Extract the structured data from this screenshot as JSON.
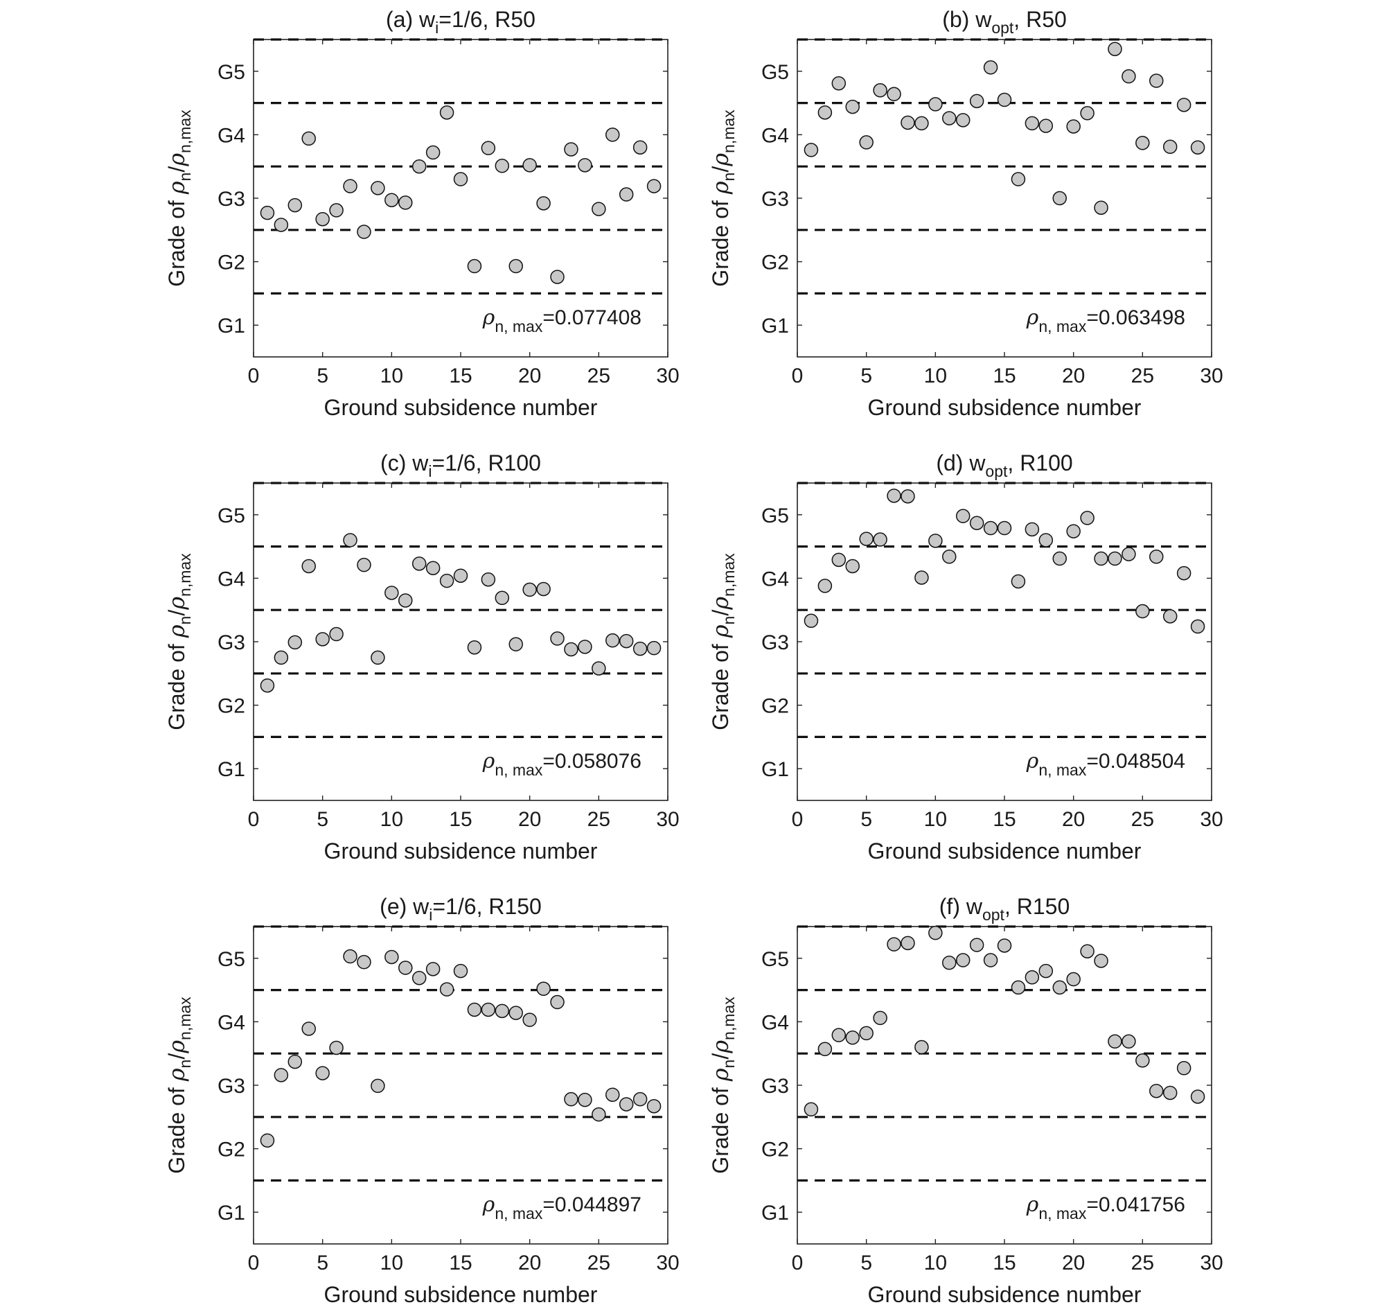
{
  "chart_data": [
    {
      "type": "scatter",
      "panel": "a",
      "title": {
        "prefix": "(a) w",
        "sub": "i",
        "suffix": "=1/6, R50"
      },
      "xlabel": "Ground subsidence number",
      "ylabel": {
        "pre": "Grade of ",
        "rho": "ρ",
        "sub1": "n",
        "slash": "/",
        "sub2": "n,max"
      },
      "xlim": [
        0,
        30
      ],
      "ylim": [
        0.5,
        5.5
      ],
      "xticks": [
        0,
        5,
        10,
        15,
        20,
        25,
        30
      ],
      "yticks": [
        1,
        2,
        3,
        4,
        5
      ],
      "ytick_labels": [
        "G1",
        "G2",
        "G3",
        "G4",
        "G5"
      ],
      "grade_boundaries": [
        1.5,
        2.5,
        3.5,
        4.5,
        5.5
      ],
      "annotation": {
        "rho": "ρ",
        "sub": "n, max",
        "value": "=0.077408"
      },
      "x": [
        1,
        2,
        3,
        4,
        5,
        6,
        7,
        8,
        9,
        10,
        11,
        12,
        13,
        14,
        15,
        16,
        17,
        18,
        19,
        20,
        21,
        22,
        23,
        24,
        25,
        26,
        27,
        28,
        29
      ],
      "y": [
        2.77,
        2.58,
        2.89,
        3.94,
        2.67,
        2.81,
        3.19,
        2.47,
        3.16,
        2.97,
        2.93,
        3.5,
        3.72,
        4.35,
        3.3,
        1.93,
        3.79,
        3.51,
        1.93,
        3.52,
        2.92,
        1.76,
        3.77,
        3.52,
        2.83,
        4.0,
        3.06,
        3.8,
        3.19
      ]
    },
    {
      "type": "scatter",
      "panel": "b",
      "title": {
        "prefix": "(b) w",
        "sub": "opt",
        "suffix": ", R50"
      },
      "xlabel": "Ground subsidence number",
      "ylabel": {
        "pre": "Grade of ",
        "rho": "ρ",
        "sub1": "n",
        "slash": "/",
        "sub2": "n,max"
      },
      "xlim": [
        0,
        30
      ],
      "ylim": [
        0.5,
        5.5
      ],
      "xticks": [
        0,
        5,
        10,
        15,
        20,
        25,
        30
      ],
      "yticks": [
        1,
        2,
        3,
        4,
        5
      ],
      "ytick_labels": [
        "G1",
        "G2",
        "G3",
        "G4",
        "G5"
      ],
      "grade_boundaries": [
        1.5,
        2.5,
        3.5,
        4.5,
        5.5
      ],
      "annotation": {
        "rho": "ρ",
        "sub": "n, max",
        "value": "=0.063498"
      },
      "x": [
        1,
        2,
        3,
        4,
        5,
        6,
        7,
        8,
        9,
        10,
        11,
        12,
        13,
        14,
        15,
        16,
        17,
        18,
        19,
        20,
        21,
        22,
        23,
        24,
        25,
        26,
        27,
        28,
        29
      ],
      "y": [
        3.76,
        4.35,
        4.81,
        4.44,
        3.88,
        4.7,
        4.64,
        4.19,
        4.18,
        4.48,
        4.26,
        4.23,
        4.53,
        5.06,
        4.55,
        3.3,
        4.18,
        4.14,
        3.0,
        4.13,
        4.34,
        2.85,
        5.35,
        4.92,
        3.87,
        4.85,
        3.81,
        4.47,
        3.8
      ]
    },
    {
      "type": "scatter",
      "panel": "c",
      "title": {
        "prefix": "(c) w",
        "sub": "i",
        "suffix": "=1/6, R100"
      },
      "xlabel": "Ground subsidence number",
      "ylabel": {
        "pre": "Grade of ",
        "rho": "ρ",
        "sub1": "n",
        "slash": "/",
        "sub2": "n,max"
      },
      "xlim": [
        0,
        30
      ],
      "ylim": [
        0.5,
        5.5
      ],
      "xticks": [
        0,
        5,
        10,
        15,
        20,
        25,
        30
      ],
      "yticks": [
        1,
        2,
        3,
        4,
        5
      ],
      "ytick_labels": [
        "G1",
        "G2",
        "G3",
        "G4",
        "G5"
      ],
      "grade_boundaries": [
        1.5,
        2.5,
        3.5,
        4.5,
        5.5
      ],
      "annotation": {
        "rho": "ρ",
        "sub": "n, max",
        "value": "=0.058076"
      },
      "x": [
        1,
        2,
        3,
        4,
        5,
        6,
        7,
        8,
        9,
        10,
        11,
        12,
        13,
        14,
        15,
        16,
        17,
        18,
        19,
        20,
        21,
        22,
        23,
        24,
        25,
        26,
        27,
        28,
        29
      ],
      "y": [
        2.31,
        2.75,
        2.99,
        4.19,
        3.04,
        3.12,
        4.6,
        4.21,
        2.75,
        3.77,
        3.65,
        4.23,
        4.16,
        3.96,
        4.04,
        2.91,
        3.98,
        3.69,
        2.96,
        3.82,
        3.83,
        3.05,
        2.88,
        2.92,
        2.58,
        3.02,
        3.01,
        2.89,
        2.9
      ]
    },
    {
      "type": "scatter",
      "panel": "d",
      "title": {
        "prefix": "(d) w",
        "sub": "opt",
        "suffix": ", R100"
      },
      "xlabel": "Ground subsidence number",
      "ylabel": {
        "pre": "Grade of ",
        "rho": "ρ",
        "sub1": "n",
        "slash": "/",
        "sub2": "n,max"
      },
      "xlim": [
        0,
        30
      ],
      "ylim": [
        0.5,
        5.5
      ],
      "xticks": [
        0,
        5,
        10,
        15,
        20,
        25,
        30
      ],
      "yticks": [
        1,
        2,
        3,
        4,
        5
      ],
      "ytick_labels": [
        "G1",
        "G2",
        "G3",
        "G4",
        "G5"
      ],
      "grade_boundaries": [
        1.5,
        2.5,
        3.5,
        4.5,
        5.5
      ],
      "annotation": {
        "rho": "ρ",
        "sub": "n, max",
        "value": "=0.048504"
      },
      "x": [
        1,
        2,
        3,
        4,
        5,
        6,
        7,
        8,
        9,
        10,
        11,
        12,
        13,
        14,
        15,
        16,
        17,
        18,
        19,
        20,
        21,
        22,
        23,
        24,
        25,
        26,
        27,
        28,
        29
      ],
      "y": [
        3.33,
        3.88,
        4.29,
        4.19,
        4.62,
        4.61,
        5.3,
        5.29,
        4.01,
        4.59,
        4.34,
        4.98,
        4.87,
        4.79,
        4.79,
        3.95,
        4.77,
        4.6,
        4.31,
        4.74,
        4.95,
        4.31,
        4.31,
        4.38,
        3.48,
        4.34,
        3.4,
        4.08,
        3.24
      ]
    },
    {
      "type": "scatter",
      "panel": "e",
      "title": {
        "prefix": "(e) w",
        "sub": "i",
        "suffix": "=1/6, R150"
      },
      "xlabel": "Ground subsidence number",
      "ylabel": {
        "pre": "Grade of ",
        "rho": "ρ",
        "sub1": "n",
        "slash": "/",
        "sub2": "n,max"
      },
      "xlim": [
        0,
        30
      ],
      "ylim": [
        0.5,
        5.5
      ],
      "xticks": [
        0,
        5,
        10,
        15,
        20,
        25,
        30
      ],
      "yticks": [
        1,
        2,
        3,
        4,
        5
      ],
      "ytick_labels": [
        "G1",
        "G2",
        "G3",
        "G4",
        "G5"
      ],
      "grade_boundaries": [
        1.5,
        2.5,
        3.5,
        4.5,
        5.5
      ],
      "annotation": {
        "rho": "ρ",
        "sub": "n, max",
        "value": "=0.044897"
      },
      "x": [
        1,
        2,
        3,
        4,
        5,
        6,
        7,
        8,
        9,
        10,
        11,
        12,
        13,
        14,
        15,
        16,
        17,
        18,
        19,
        20,
        21,
        22,
        23,
        24,
        25,
        26,
        27,
        28,
        29
      ],
      "y": [
        2.13,
        3.16,
        3.37,
        3.89,
        3.19,
        3.59,
        5.03,
        4.94,
        2.99,
        5.02,
        4.85,
        4.69,
        4.83,
        4.51,
        4.8,
        4.19,
        4.19,
        4.17,
        4.14,
        4.03,
        4.52,
        4.31,
        2.78,
        2.77,
        2.54,
        2.85,
        2.7,
        2.78,
        2.67
      ]
    },
    {
      "type": "scatter",
      "panel": "f",
      "title": {
        "prefix": "(f) w",
        "sub": "opt",
        "suffix": ", R150"
      },
      "xlabel": "Ground subsidence number",
      "ylabel": {
        "pre": "Grade of ",
        "rho": "ρ",
        "sub1": "n",
        "slash": "/",
        "sub2": "n,max"
      },
      "xlim": [
        0,
        30
      ],
      "ylim": [
        0.5,
        5.5
      ],
      "xticks": [
        0,
        5,
        10,
        15,
        20,
        25,
        30
      ],
      "yticks": [
        1,
        2,
        3,
        4,
        5
      ],
      "ytick_labels": [
        "G1",
        "G2",
        "G3",
        "G4",
        "G5"
      ],
      "grade_boundaries": [
        1.5,
        2.5,
        3.5,
        4.5,
        5.5
      ],
      "annotation": {
        "rho": "ρ",
        "sub": "n, max",
        "value": "=0.041756"
      },
      "x": [
        1,
        2,
        3,
        4,
        5,
        6,
        7,
        8,
        9,
        10,
        11,
        12,
        13,
        14,
        15,
        16,
        17,
        18,
        19,
        20,
        21,
        22,
        23,
        24,
        25,
        26,
        27,
        28,
        29
      ],
      "y": [
        2.62,
        3.57,
        3.79,
        3.75,
        3.82,
        4.06,
        5.22,
        5.24,
        3.6,
        5.4,
        4.93,
        4.97,
        5.21,
        4.97,
        5.2,
        4.54,
        4.7,
        4.8,
        4.54,
        4.67,
        5.11,
        4.96,
        3.69,
        3.69,
        3.39,
        2.91,
        2.88,
        3.27,
        2.82
      ]
    }
  ],
  "colors": {
    "marker_fill": "#c8c8c8",
    "marker_edge": "#111111",
    "axis": "#222222",
    "dashed_line": "#111111",
    "text": "#1a1a1a",
    "background": "#ffffff"
  }
}
